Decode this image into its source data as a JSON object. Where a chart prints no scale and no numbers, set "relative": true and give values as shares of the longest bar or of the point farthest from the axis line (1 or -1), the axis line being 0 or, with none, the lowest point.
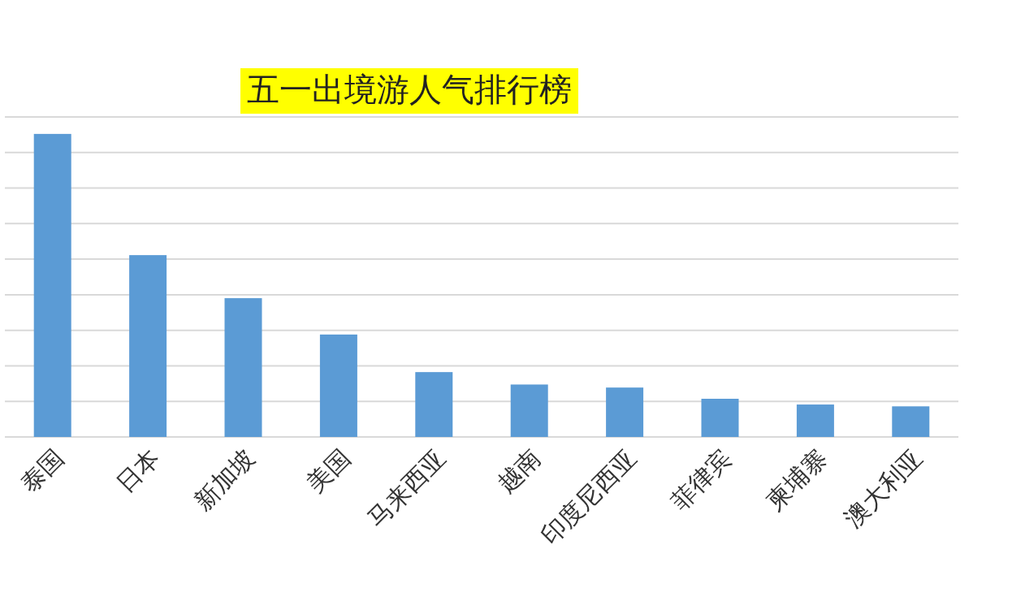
{
  "chart_data": {
    "type": "bar",
    "title": "五一出境游人气排行榜",
    "relative": true,
    "grid": "y",
    "categories": [
      "泰国",
      "日本",
      "新加坡",
      "美国",
      "马来西亚",
      "越南",
      "印度尼西亚",
      "菲律宾",
      "柬埔寨",
      "澳大利亚"
    ],
    "series": [
      {
        "color": "#5b9bd5",
        "values": [
          1,
          0.6,
          0.458,
          0.338,
          0.214,
          0.173,
          0.163,
          0.126,
          0.107,
          0.101
        ]
      }
    ]
  }
}
